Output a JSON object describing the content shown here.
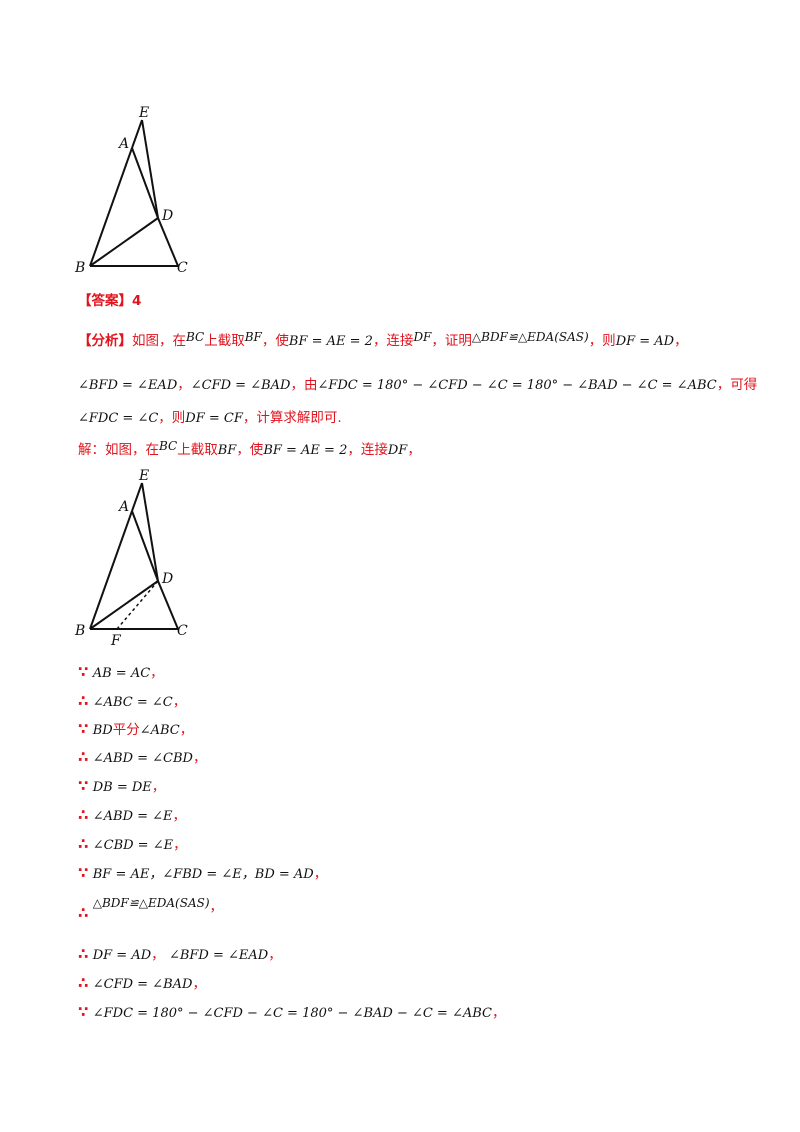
{
  "figure1": {
    "labels": {
      "E": "E",
      "A": "A",
      "D": "D",
      "B": "B",
      "C": "C"
    }
  },
  "answer": {
    "label": "【答案】",
    "value": "4"
  },
  "analysis": {
    "label": "【分析】",
    "l1_p1": "如图，在",
    "l1_m1": "BC",
    "l1_p2": "上截取",
    "l1_m2": "BF",
    "l1_p3": "，使",
    "l1_m3": "BF = AE = 2",
    "l1_p4": "，连接",
    "l1_m4": "DF",
    "l1_p5": "，证明",
    "l1_m5": "△BDF≌△EDA(SAS)",
    "l1_p6": "，则",
    "l1_m6": "DF = AD",
    "l1_p7": "，",
    "l2_m1": "∠BFD = ∠EAD",
    "l2_p1": "，",
    "l2_m2": "∠CFD = ∠BAD",
    "l2_p2": "，由",
    "l2_m3": "∠FDC = 180° − ∠CFD − ∠C = 180° − ∠BAD − ∠C = ∠ABC",
    "l2_p3": "，可得",
    "l3_m1": "∠FDC = ∠C",
    "l3_p1": "，则",
    "l3_m2": "DF = CF",
    "l3_p2": "，计算求解即可."
  },
  "solution": {
    "s_p1": "解：如图，在",
    "s_m1": "BC",
    "s_p2": "上截取",
    "s_m2": "BF",
    "s_p3": "，使",
    "s_m3": "BF = AE = 2",
    "s_p4": "，连接",
    "s_m4": "DF",
    "s_p5": "，"
  },
  "figure2": {
    "labels": {
      "E": "E",
      "A": "A",
      "D": "D",
      "B": "B",
      "C": "C",
      "F": "F"
    }
  },
  "proof": {
    "because": "∵",
    "therefore": "∴",
    "comma": "，",
    "p1": "AB = AC",
    "p2": "∠ABC = ∠C",
    "p3a": "BD",
    "p3b": "平分",
    "p3c": "∠ABC",
    "p4": "∠ABD = ∠CBD",
    "p5": "DB = DE",
    "p6": "∠ABD = ∠E",
    "p7": "∠CBD = ∠E",
    "p8": "BF = AE，∠FBD = ∠E，BD = AD",
    "p9": "△BDF≌△EDA(SAS)",
    "p10a": "DF = AD",
    "p10b": "∠BFD = ∠EAD",
    "p11": "∠CFD = ∠BAD",
    "p12": "∠FDC = 180° − ∠CFD − ∠C = 180° − ∠BAD − ∠C = ∠ABC"
  }
}
